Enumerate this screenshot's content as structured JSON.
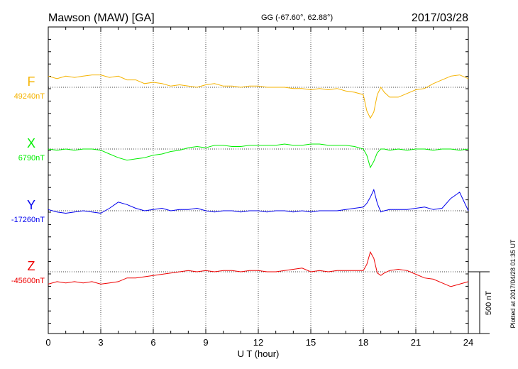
{
  "header": {
    "station": "Mawson (MAW)  [GA]",
    "coords": "GG (-67.60°,  62.88°)",
    "date": "2017/03/28"
  },
  "footer_note": "Plotted at 2017/04/28 01:35 UT",
  "scale_label": "500 nT",
  "colors": {
    "F": "#f5b300",
    "X": "#00ee00",
    "Y": "#0000ee",
    "Z": "#ee0000",
    "axis": "#000000"
  },
  "chart_data": {
    "type": "line",
    "title": "Mawson (MAW)  [GA]",
    "subtitle": "GG (-67.60°,  62.88°)",
    "xlabel": "U T (hour)",
    "xlim": [
      0,
      24
    ],
    "xticks": [
      "0",
      "3",
      "6",
      "9",
      "12",
      "15",
      "18",
      "21",
      "24"
    ],
    "grid": true,
    "scale_nT": 500,
    "series": [
      {
        "name": "F",
        "baseline_label": "49240nT",
        "baseline_nT": 49240,
        "x": [
          0,
          0.5,
          1,
          1.5,
          2,
          2.5,
          3,
          3.5,
          4,
          4.5,
          5,
          5.5,
          6,
          6.5,
          7,
          7.5,
          8,
          8.5,
          9,
          9.5,
          10,
          10.5,
          11,
          11.5,
          12,
          12.5,
          13,
          13.5,
          14,
          14.5,
          15,
          15.5,
          16,
          16.5,
          17,
          17.5,
          18,
          18.2,
          18.4,
          18.6,
          18.8,
          19,
          19.2,
          19.5,
          20,
          20.5,
          21,
          21.5,
          22,
          22.5,
          23,
          23.5,
          24
        ],
        "y": [
          49330,
          49310,
          49330,
          49320,
          49330,
          49340,
          49340,
          49320,
          49330,
          49300,
          49300,
          49270,
          49280,
          49270,
          49250,
          49260,
          49250,
          49240,
          49260,
          49270,
          49250,
          49250,
          49240,
          49250,
          49250,
          49240,
          49240,
          49240,
          49230,
          49230,
          49220,
          49230,
          49220,
          49230,
          49210,
          49200,
          49180,
          49050,
          48990,
          49040,
          49180,
          49240,
          49200,
          49160,
          49160,
          49190,
          49220,
          49230,
          49270,
          49300,
          49330,
          49340,
          49310
        ]
      },
      {
        "name": "X",
        "baseline_label": "6790nT",
        "baseline_nT": 6790,
        "x": [
          0,
          0.5,
          1,
          1.5,
          2,
          2.5,
          3,
          3.5,
          4,
          4.5,
          5,
          5.5,
          6,
          6.5,
          7,
          7.5,
          8,
          8.5,
          9,
          9.5,
          10,
          10.5,
          11,
          11.5,
          12,
          12.5,
          13,
          13.5,
          14,
          14.5,
          15,
          15.5,
          16,
          16.5,
          17,
          17.5,
          18,
          18.2,
          18.4,
          18.6,
          18.8,
          19,
          19.2,
          19.5,
          20,
          20.5,
          21,
          21.5,
          22,
          22.5,
          23,
          23.5,
          24
        ],
        "y": [
          6790,
          6780,
          6790,
          6780,
          6790,
          6790,
          6780,
          6750,
          6720,
          6700,
          6710,
          6720,
          6740,
          6750,
          6770,
          6780,
          6800,
          6810,
          6800,
          6820,
          6820,
          6810,
          6810,
          6820,
          6820,
          6820,
          6820,
          6830,
          6820,
          6820,
          6830,
          6830,
          6820,
          6820,
          6820,
          6810,
          6790,
          6740,
          6640,
          6690,
          6760,
          6790,
          6790,
          6780,
          6790,
          6780,
          6790,
          6790,
          6780,
          6790,
          6790,
          6780,
          6790
        ]
      },
      {
        "name": "Y",
        "baseline_label": "-17260nT",
        "baseline_nT": -17260,
        "x": [
          0,
          0.5,
          1,
          1.5,
          2,
          2.5,
          3,
          3.5,
          4,
          4.5,
          5,
          5.5,
          6,
          6.5,
          7,
          7.5,
          8,
          8.5,
          9,
          9.5,
          10,
          10.5,
          11,
          11.5,
          12,
          12.5,
          13,
          13.5,
          14,
          14.5,
          15,
          15.5,
          16,
          16.5,
          17,
          17.5,
          18,
          18.2,
          18.4,
          18.6,
          18.8,
          19,
          19.2,
          19.5,
          20,
          20.5,
          21,
          21.5,
          22,
          22.5,
          23,
          23.5,
          24
        ],
        "y": [
          -17250,
          -17270,
          -17280,
          -17270,
          -17260,
          -17270,
          -17280,
          -17240,
          -17190,
          -17210,
          -17240,
          -17260,
          -17250,
          -17240,
          -17260,
          -17250,
          -17250,
          -17240,
          -17260,
          -17270,
          -17260,
          -17260,
          -17270,
          -17260,
          -17260,
          -17270,
          -17260,
          -17260,
          -17270,
          -17260,
          -17270,
          -17260,
          -17260,
          -17260,
          -17250,
          -17240,
          -17230,
          -17200,
          -17150,
          -17090,
          -17200,
          -17270,
          -17260,
          -17250,
          -17250,
          -17250,
          -17240,
          -17230,
          -17250,
          -17240,
          -17160,
          -17110,
          -17260
        ]
      },
      {
        "name": "Z",
        "baseline_label": "-45600nT",
        "baseline_nT": -45600,
        "x": [
          0,
          0.5,
          1,
          1.5,
          2,
          2.5,
          3,
          3.5,
          4,
          4.5,
          5,
          5.5,
          6,
          6.5,
          7,
          7.5,
          8,
          8.5,
          9,
          9.5,
          10,
          10.5,
          11,
          11.5,
          12,
          12.5,
          13,
          13.5,
          14,
          14.5,
          15,
          15.5,
          16,
          16.5,
          17,
          17.5,
          18,
          18.2,
          18.4,
          18.6,
          18.8,
          19,
          19.2,
          19.5,
          20,
          20.5,
          21,
          21.5,
          22,
          22.5,
          23,
          23.5,
          24
        ],
        "y": [
          -45700,
          -45680,
          -45690,
          -45680,
          -45690,
          -45680,
          -45700,
          -45690,
          -45680,
          -45650,
          -45650,
          -45640,
          -45630,
          -45620,
          -45610,
          -45600,
          -45590,
          -45600,
          -45590,
          -45600,
          -45590,
          -45590,
          -45600,
          -45590,
          -45590,
          -45600,
          -45600,
          -45590,
          -45580,
          -45570,
          -45600,
          -45590,
          -45600,
          -45590,
          -45590,
          -45590,
          -45590,
          -45540,
          -45440,
          -45490,
          -45610,
          -45630,
          -45610,
          -45590,
          -45580,
          -45590,
          -45620,
          -45650,
          -45660,
          -45690,
          -45720,
          -45700,
          -45680
        ]
      }
    ]
  }
}
